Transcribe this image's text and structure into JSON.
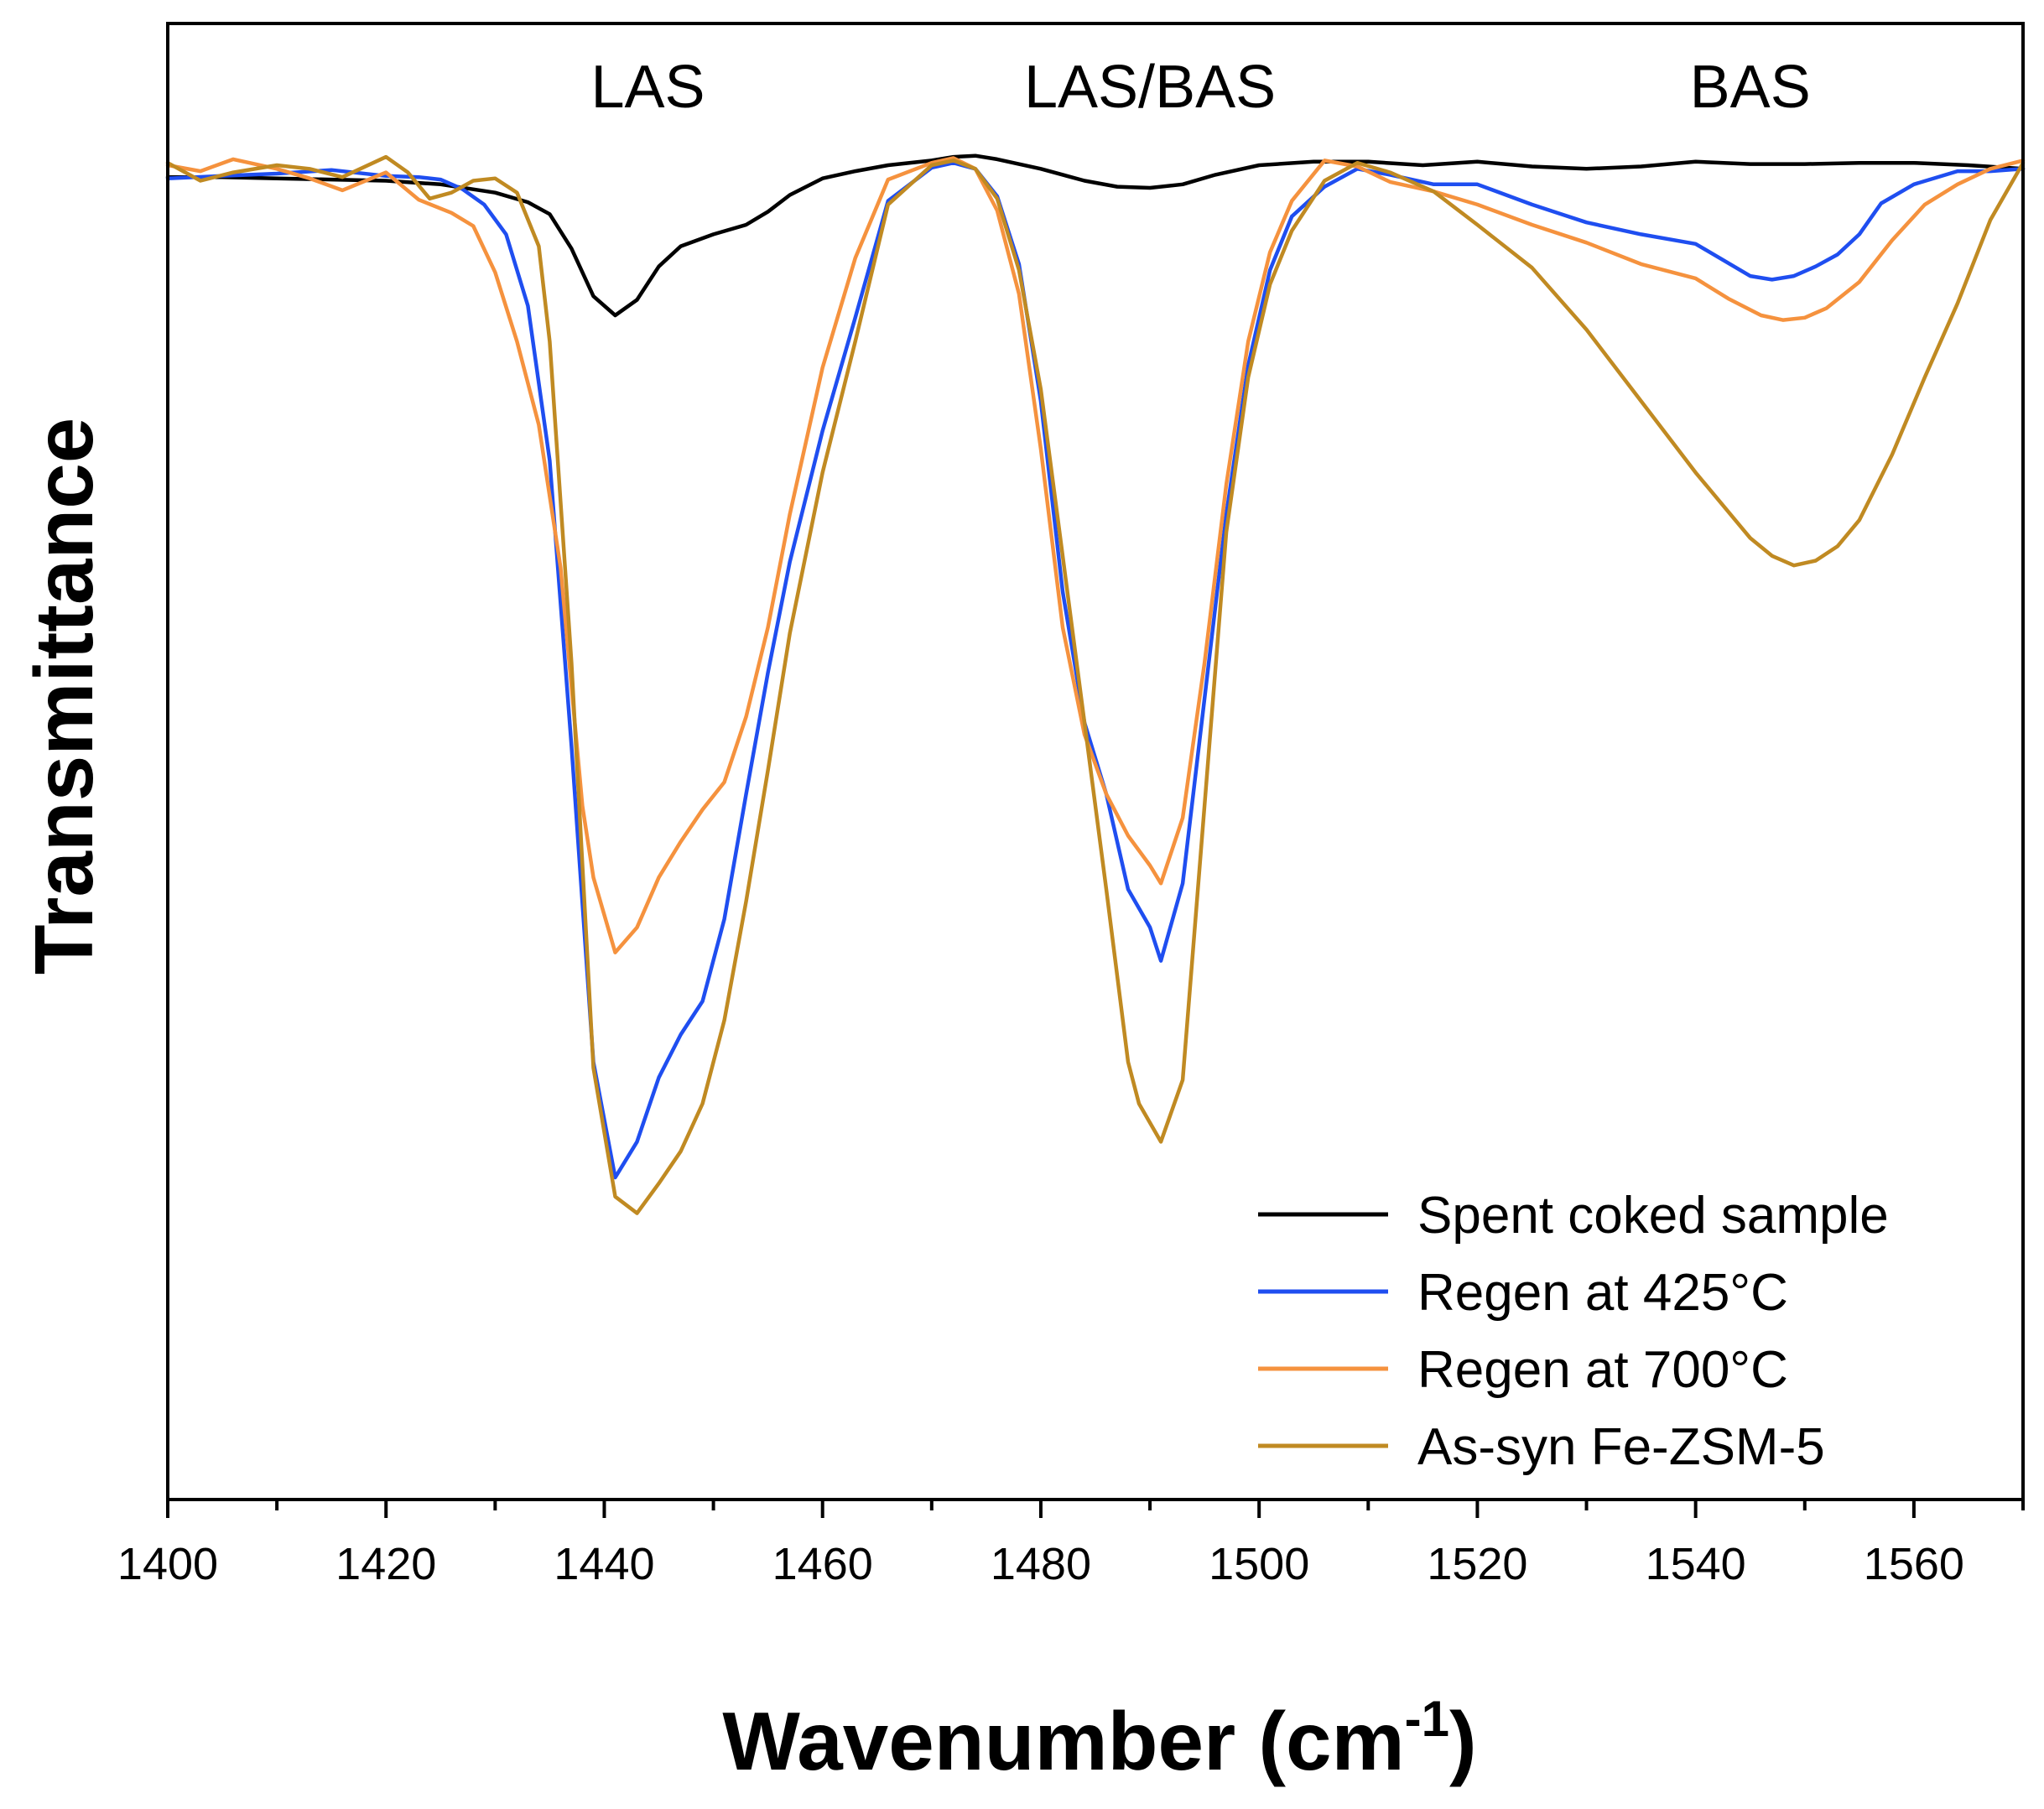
{
  "chart_data": {
    "type": "line",
    "xlabel": "Wavenumber (cm",
    "xlabel_sup": "-1",
    "xlabel_close": ")",
    "ylabel": "Transmittance",
    "xlim": [
      1400,
      1570
    ],
    "ylim": [
      0,
      1
    ],
    "x_ticks": [
      1400,
      1420,
      1440,
      1460,
      1480,
      1500,
      1520,
      1540,
      1560
    ],
    "y_ticks_shown": false,
    "grid": false,
    "legend_position": "bottom-right",
    "band_labels": [
      {
        "text": "LAS",
        "x": 1444
      },
      {
        "text": "LAS/BAS",
        "x": 1490
      },
      {
        "text": "BAS",
        "x": 1545
      }
    ],
    "series": [
      {
        "name": "Spent coked sample",
        "color": "#000000",
        "x": [
          1400,
          1405,
          1410,
          1415,
          1420,
          1425,
          1430,
          1433,
          1435,
          1437,
          1439,
          1441,
          1443,
          1445,
          1447,
          1450,
          1453,
          1455,
          1457,
          1460,
          1463,
          1466,
          1470,
          1472,
          1474,
          1476,
          1480,
          1484,
          1487,
          1490,
          1493,
          1496,
          1500,
          1505,
          1510,
          1515,
          1520,
          1525,
          1530,
          1535,
          1540,
          1545,
          1550,
          1555,
          1560,
          1565,
          1570
        ],
        "values": [
          0.978,
          0.978,
          0.977,
          0.976,
          0.975,
          0.972,
          0.965,
          0.957,
          0.947,
          0.918,
          0.878,
          0.862,
          0.875,
          0.903,
          0.92,
          0.93,
          0.938,
          0.949,
          0.963,
          0.977,
          0.983,
          0.988,
          0.992,
          0.995,
          0.996,
          0.993,
          0.985,
          0.975,
          0.97,
          0.969,
          0.972,
          0.98,
          0.988,
          0.991,
          0.991,
          0.988,
          0.991,
          0.987,
          0.985,
          0.987,
          0.991,
          0.989,
          0.989,
          0.99,
          0.99,
          0.988,
          0.985
        ]
      },
      {
        "name": "Regen at 425°C",
        "color": "#1f4ef0",
        "x": [
          1400,
          1405,
          1410,
          1415,
          1420,
          1423,
          1425,
          1427,
          1429,
          1431,
          1433,
          1435,
          1437,
          1439,
          1441,
          1443,
          1445,
          1447,
          1449,
          1451,
          1453,
          1455,
          1457,
          1460,
          1463,
          1466,
          1470,
          1472,
          1474,
          1476,
          1478,
          1480,
          1482,
          1484,
          1486,
          1488,
          1490,
          1491,
          1493,
          1495,
          1497,
          1499,
          1501,
          1503,
          1506,
          1509,
          1512,
          1516,
          1520,
          1525,
          1530,
          1535,
          1540,
          1545,
          1547,
          1549,
          1551,
          1553,
          1555,
          1557,
          1560,
          1564,
          1567,
          1570
        ],
        "values": [
          0.977,
          0.979,
          0.981,
          0.984,
          0.979,
          0.978,
          0.976,
          0.968,
          0.955,
          0.93,
          0.87,
          0.74,
          0.5,
          0.235,
          0.138,
          0.168,
          0.222,
          0.258,
          0.286,
          0.355,
          0.46,
          0.562,
          0.655,
          0.765,
          0.86,
          0.958,
          0.986,
          0.99,
          0.985,
          0.962,
          0.905,
          0.79,
          0.63,
          0.52,
          0.46,
          0.38,
          0.348,
          0.32,
          0.385,
          0.54,
          0.695,
          0.82,
          0.9,
          0.945,
          0.97,
          0.985,
          0.98,
          0.972,
          0.972,
          0.955,
          0.94,
          0.93,
          0.922,
          0.895,
          0.892,
          0.895,
          0.903,
          0.913,
          0.93,
          0.956,
          0.972,
          0.983,
          0.983,
          0.985
        ]
      },
      {
        "name": "Regen at 700°C",
        "color": "#f5923e",
        "x": [
          1400,
          1403,
          1406,
          1410,
          1413,
          1416,
          1420,
          1423,
          1426,
          1428,
          1430,
          1432,
          1434,
          1436,
          1438,
          1439,
          1441,
          1443,
          1445,
          1447,
          1449,
          1451,
          1453,
          1455,
          1457,
          1460,
          1463,
          1466,
          1470,
          1472,
          1474,
          1476,
          1478,
          1480,
          1482,
          1484,
          1486,
          1488,
          1490,
          1491,
          1493,
          1495,
          1497,
          1499,
          1501,
          1503,
          1506,
          1509,
          1512,
          1516,
          1520,
          1525,
          1530,
          1535,
          1540,
          1543,
          1546,
          1548,
          1550,
          1552,
          1555,
          1558,
          1561,
          1564,
          1567,
          1570
        ],
        "values": [
          0.988,
          0.983,
          0.993,
          0.985,
          0.977,
          0.967,
          0.982,
          0.959,
          0.948,
          0.937,
          0.898,
          0.84,
          0.77,
          0.65,
          0.45,
          0.39,
          0.327,
          0.348,
          0.39,
          0.42,
          0.447,
          0.47,
          0.525,
          0.6,
          0.695,
          0.818,
          0.91,
          0.976,
          0.99,
          0.994,
          0.985,
          0.95,
          0.88,
          0.75,
          0.6,
          0.51,
          0.46,
          0.425,
          0.4,
          0.385,
          0.44,
          0.57,
          0.72,
          0.84,
          0.915,
          0.958,
          0.992,
          0.987,
          0.974,
          0.966,
          0.955,
          0.938,
          0.923,
          0.905,
          0.893,
          0.876,
          0.862,
          0.858,
          0.86,
          0.868,
          0.89,
          0.925,
          0.955,
          0.972,
          0.985,
          0.992
        ]
      },
      {
        "name": "As-syn Fe-ZSM-5",
        "color": "#c08a22",
        "x": [
          1400,
          1403,
          1406,
          1410,
          1413,
          1416,
          1420,
          1422,
          1424,
          1426,
          1428,
          1430,
          1432,
          1434,
          1435,
          1437,
          1439,
          1441,
          1443,
          1445,
          1447,
          1449,
          1451,
          1453,
          1455,
          1457,
          1460,
          1463,
          1466,
          1470,
          1472,
          1474,
          1476,
          1478,
          1480,
          1482,
          1484,
          1486,
          1488,
          1489,
          1491,
          1493,
          1495,
          1497,
          1499,
          1501,
          1503,
          1506,
          1509,
          1512,
          1516,
          1520,
          1525,
          1530,
          1535,
          1540,
          1545,
          1547,
          1549,
          1551,
          1553,
          1555,
          1558,
          1561,
          1564,
          1567,
          1570
        ],
        "values": [
          0.99,
          0.975,
          0.982,
          0.988,
          0.985,
          0.978,
          0.995,
          0.982,
          0.96,
          0.965,
          0.975,
          0.977,
          0.965,
          0.92,
          0.84,
          0.57,
          0.23,
          0.122,
          0.108,
          0.133,
          0.16,
          0.2,
          0.27,
          0.37,
          0.48,
          0.595,
          0.73,
          0.84,
          0.955,
          0.988,
          0.992,
          0.985,
          0.96,
          0.9,
          0.8,
          0.66,
          0.52,
          0.38,
          0.235,
          0.2,
          0.168,
          0.22,
          0.45,
          0.68,
          0.81,
          0.888,
          0.933,
          0.975,
          0.99,
          0.982,
          0.966,
          0.938,
          0.902,
          0.85,
          0.79,
          0.73,
          0.675,
          0.66,
          0.652,
          0.656,
          0.668,
          0.69,
          0.745,
          0.81,
          0.872,
          0.942,
          0.99
        ]
      }
    ]
  }
}
